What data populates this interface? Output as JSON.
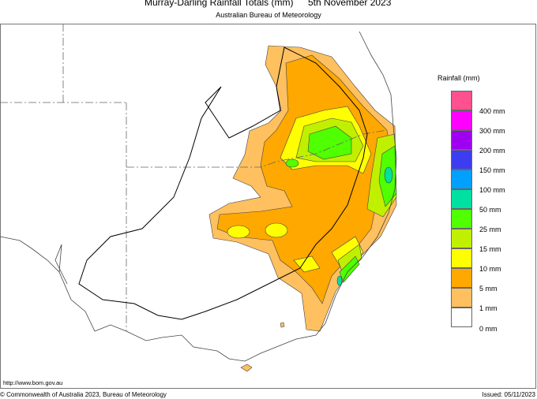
{
  "header": {
    "title": "Murray-Darling Rainfall Totals (mm)",
    "date": "5th November 2023",
    "subtitle": "Australian Bureau of Meteorology"
  },
  "legend": {
    "title": "Rainfall (mm)",
    "colors": [
      "#ff5090",
      "#ff00ff",
      "#a000f0",
      "#3c3cf0",
      "#00a0ff",
      "#00e0a0",
      "#50ff00",
      "#c0f000",
      "#ffff00",
      "#ffa800",
      "#ffc060",
      "#ffffff"
    ],
    "labels": [
      "400 mm",
      "300 mm",
      "200 mm",
      "150 mm",
      "100 mm",
      "50 mm",
      "25 mm",
      "15 mm",
      "10 mm",
      "5 mm",
      "1 mm",
      "0 mm"
    ]
  },
  "footer": {
    "url": "http://www.bom.gov.au",
    "copyright": "© Commonwealth of Australia 2023, Bureau of Meteorology",
    "issued": "Issued: 05/11/2023"
  }
}
